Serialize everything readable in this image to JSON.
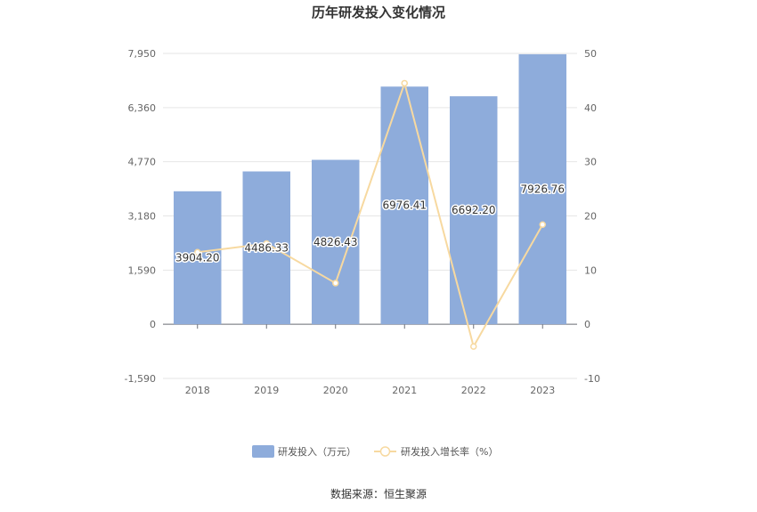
{
  "chart_data": {
    "type": "bar",
    "title": "历年研发投入变化情况",
    "categories": [
      "2018",
      "2019",
      "2020",
      "2021",
      "2022",
      "2023"
    ],
    "series": [
      {
        "name": "研发投入（万元）",
        "type": "bar",
        "axis": "left",
        "color": "#8eacdb",
        "values": [
          3904.2,
          4486.33,
          4826.43,
          6976.41,
          6692.2,
          7926.76
        ],
        "labels": [
          "3904.20",
          "4486.33",
          "4826.43",
          "6976.41",
          "6692.20",
          "7926.76"
        ]
      },
      {
        "name": "研发投入增长率（%）",
        "type": "line",
        "axis": "right",
        "color": "#f7d9a0",
        "values": [
          13.3,
          14.9,
          7.6,
          44.5,
          -4.1,
          18.4
        ]
      }
    ],
    "y_left": {
      "ylim": [
        -1590,
        7950
      ],
      "ticks": [
        -1590,
        0,
        1590,
        3180,
        4770,
        6360,
        7950
      ],
      "tick_labels": [
        "-1,590",
        "0",
        "1,590",
        "3,180",
        "4,770",
        "6,360",
        "7,950"
      ]
    },
    "y_right": {
      "ylim": [
        -10,
        50
      ],
      "ticks": [
        -10,
        0,
        10,
        20,
        30,
        40,
        50
      ],
      "tick_labels": [
        "-10",
        "0",
        "10",
        "20",
        "30",
        "40",
        "50"
      ]
    },
    "grid": true,
    "legend": "bottom-center",
    "source": "数据来源：恒生聚源"
  }
}
